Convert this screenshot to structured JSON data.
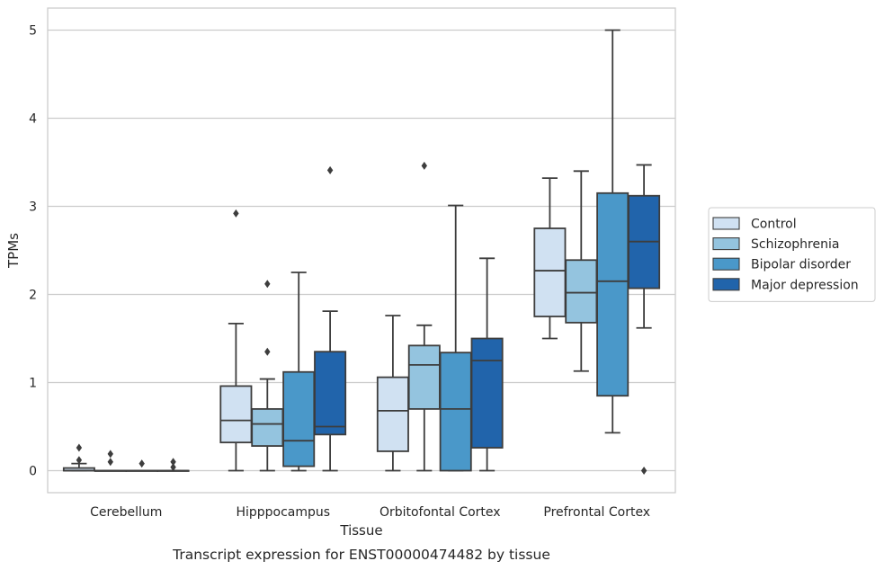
{
  "chart_data": {
    "type": "box",
    "title": "",
    "caption": "Transcript expression for ENST00000474482 by tissue",
    "xlabel": "Tissue",
    "ylabel": "TPMs",
    "ylim": [
      -0.25,
      5.25
    ],
    "yticks": [
      0,
      1,
      2,
      3,
      4,
      5
    ],
    "grid": "horizontal",
    "legend_position": "right",
    "categories": [
      "Cerebellum",
      "Hipppocampus",
      "Orbitofontal Cortex",
      "Prefrontal Cortex"
    ],
    "series": [
      {
        "name": "Control",
        "color": "#d0e1f2",
        "boxes": [
          {
            "whislo": 0.0,
            "q1": 0.0,
            "med": 0.0,
            "q3": 0.03,
            "whishi": 0.08,
            "fliers": [
              0.26,
              0.12
            ]
          },
          {
            "whislo": 0.0,
            "q1": 0.32,
            "med": 0.57,
            "q3": 0.96,
            "whishi": 1.67,
            "fliers": [
              2.92
            ]
          },
          {
            "whislo": 0.0,
            "q1": 0.22,
            "med": 0.68,
            "q3": 1.06,
            "whishi": 1.76,
            "fliers": []
          },
          {
            "whislo": 1.5,
            "q1": 1.75,
            "med": 2.27,
            "q3": 2.75,
            "whishi": 3.32,
            "fliers": []
          }
        ]
      },
      {
        "name": "Schizophrenia",
        "color": "#94c4df",
        "boxes": [
          {
            "whislo": 0.0,
            "q1": 0.0,
            "med": 0.0,
            "q3": 0.0,
            "whishi": 0.0,
            "fliers": [
              0.19,
              0.1
            ]
          },
          {
            "whislo": 0.0,
            "q1": 0.28,
            "med": 0.53,
            "q3": 0.7,
            "whishi": 1.04,
            "fliers": [
              2.12,
              1.35
            ]
          },
          {
            "whislo": 0.0,
            "q1": 0.7,
            "med": 1.2,
            "q3": 1.42,
            "whishi": 1.65,
            "fliers": [
              3.46
            ]
          },
          {
            "whislo": 1.13,
            "q1": 1.68,
            "med": 2.02,
            "q3": 2.39,
            "whishi": 3.4,
            "fliers": []
          }
        ]
      },
      {
        "name": "Bipolar disorder",
        "color": "#4a98c9",
        "boxes": [
          {
            "whislo": 0.0,
            "q1": 0.0,
            "med": 0.0,
            "q3": 0.0,
            "whishi": 0.0,
            "fliers": [
              0.08
            ]
          },
          {
            "whislo": 0.0,
            "q1": 0.05,
            "med": 0.34,
            "q3": 1.12,
            "whishi": 2.25,
            "fliers": []
          },
          {
            "whislo": 0.0,
            "q1": 0.0,
            "med": 0.7,
            "q3": 1.34,
            "whishi": 3.01,
            "fliers": []
          },
          {
            "whislo": 0.43,
            "q1": 0.85,
            "med": 2.15,
            "q3": 3.15,
            "whishi": 5.0,
            "fliers": []
          }
        ]
      },
      {
        "name": "Major depression",
        "color": "#2164ab",
        "boxes": [
          {
            "whislo": 0.0,
            "q1": 0.0,
            "med": 0.0,
            "q3": 0.0,
            "whishi": 0.0,
            "fliers": [
              0.1,
              0.04
            ]
          },
          {
            "whislo": 0.0,
            "q1": 0.41,
            "med": 0.5,
            "q3": 1.35,
            "whishi": 1.81,
            "fliers": [
              3.41
            ]
          },
          {
            "whislo": 0.0,
            "q1": 0.26,
            "med": 1.25,
            "q3": 1.5,
            "whishi": 2.41,
            "fliers": []
          },
          {
            "whislo": 1.62,
            "q1": 2.07,
            "med": 2.6,
            "q3": 3.12,
            "whishi": 3.47,
            "fliers": [
              0.0
            ]
          }
        ]
      }
    ]
  }
}
